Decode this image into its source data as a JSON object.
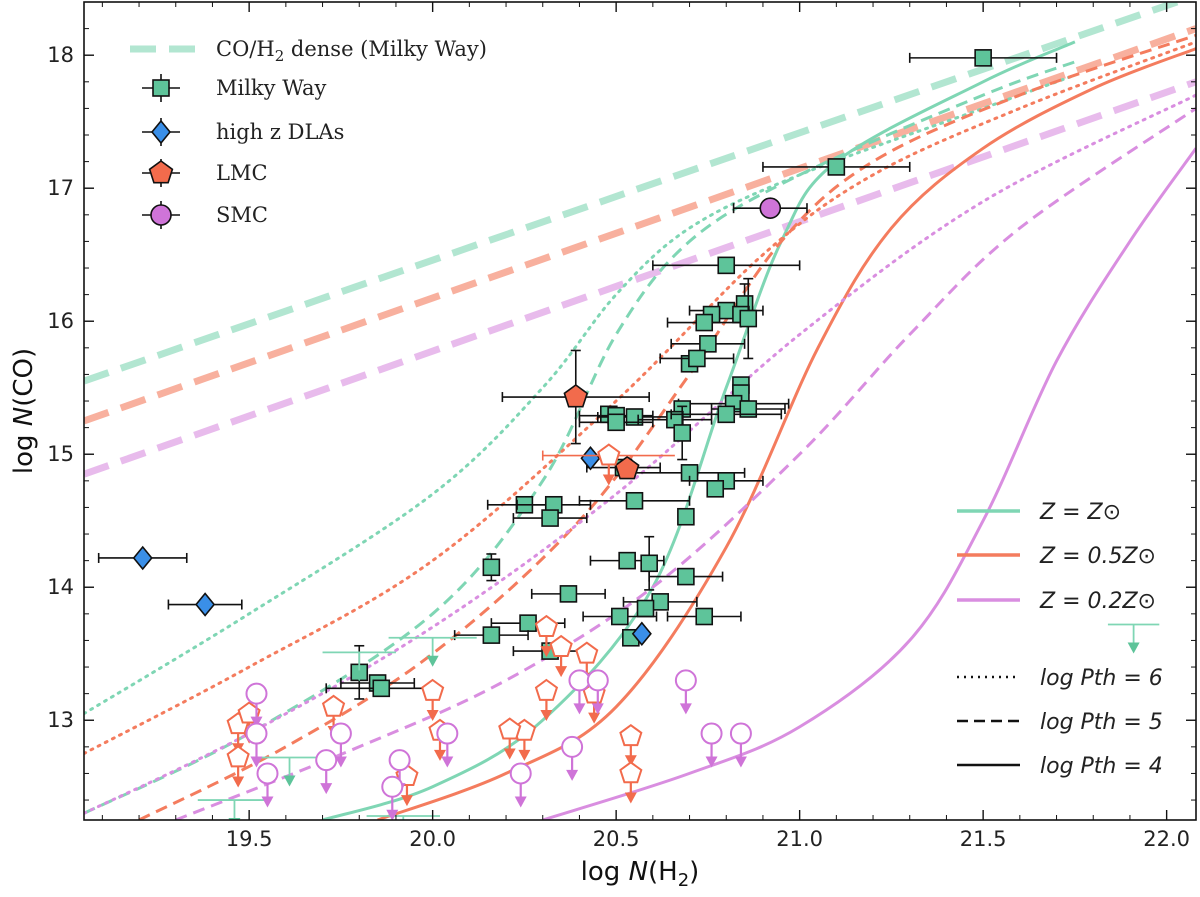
{
  "chart_data": {
    "type": "scatter",
    "xlabel": "log N(H2)",
    "ylabel": "log N(CO)",
    "xlim": [
      19.05,
      22.08
    ],
    "ylim": [
      12.25,
      18.4
    ],
    "xticks": [
      "19.5",
      "20.0",
      "20.5",
      "21.0",
      "21.5",
      "22.0"
    ],
    "yticks": [
      "13",
      "14",
      "15",
      "16",
      "17",
      "18"
    ],
    "legend_upper": {
      "dense": "CO/H2 dense (Milky Way)",
      "milky_way": "Milky Way",
      "dlas": "high z DLAs",
      "lmc": "LMC",
      "smc": "SMC"
    },
    "legend_metallicity": [
      "Z = Z⊙",
      "Z = 0.5Z⊙",
      "Z = 0.2Z⊙"
    ],
    "legend_pressure": [
      "log Pth = 6",
      "log Pth = 5",
      "log Pth = 4"
    ],
    "colors": {
      "solar": "#7fd6b4",
      "half": "#f47c5e",
      "fifth": "#d98ee0",
      "mw_marker": "#5ec49a",
      "dla_marker": "#3a8fe8",
      "lmc_marker": "#f26b4c",
      "smc_marker": "#cf74d8"
    },
    "dense_lines": [
      {
        "name": "CO/H2 dense Z=Zsun",
        "color": "solar",
        "x": [
          19.05,
          22.08
        ],
        "y": [
          15.55,
          18.45
        ]
      },
      {
        "name": "CO/H2 dense Z=0.5Zsun",
        "color": "half",
        "x": [
          19.05,
          22.08
        ],
        "y": [
          15.25,
          18.2
        ]
      },
      {
        "name": "CO/H2 dense Z=0.2Zsun",
        "color": "fifth",
        "x": [
          19.05,
          22.08
        ],
        "y": [
          14.85,
          17.8
        ]
      }
    ],
    "model_curves": [
      {
        "name": "Z=Zsun logPth=6",
        "color": "solar",
        "style": "dotted",
        "x": [
          19.05,
          19.5,
          20.0,
          20.3,
          20.5,
          20.7,
          21.0,
          21.5,
          21.75
        ],
        "y": [
          13.05,
          13.8,
          14.7,
          15.5,
          16.2,
          16.7,
          17.1,
          17.6,
          17.85
        ]
      },
      {
        "name": "Z=Zsun logPth=5",
        "color": "solar",
        "style": "dashed",
        "x": [
          19.05,
          19.5,
          20.0,
          20.3,
          20.5,
          20.7,
          21.0,
          21.5,
          21.75
        ],
        "y": [
          12.3,
          12.9,
          13.8,
          14.8,
          15.9,
          16.6,
          17.1,
          17.7,
          17.95
        ]
      },
      {
        "name": "Z=Zsun logPth=4",
        "color": "solar",
        "style": "solid",
        "x": [
          19.7,
          20.0,
          20.3,
          20.6,
          20.8,
          20.95,
          21.1,
          21.5,
          21.75
        ],
        "y": [
          12.25,
          12.5,
          13.0,
          14.0,
          15.5,
          16.6,
          17.2,
          17.8,
          18.1
        ]
      },
      {
        "name": "Z=0.5Zsun logPth=6",
        "color": "half",
        "style": "dotted",
        "x": [
          19.05,
          19.5,
          20.0,
          20.5,
          20.9,
          21.2,
          21.6,
          22.08
        ],
        "y": [
          12.75,
          13.4,
          14.2,
          15.4,
          16.5,
          17.1,
          17.6,
          18.1
        ]
      },
      {
        "name": "Z=0.5Zsun logPth=5",
        "color": "half",
        "style": "dashed",
        "x": [
          19.2,
          19.6,
          20.0,
          20.4,
          20.7,
          20.95,
          21.2,
          21.6,
          22.08
        ],
        "y": [
          12.25,
          12.8,
          13.5,
          14.5,
          15.6,
          16.6,
          17.2,
          17.7,
          18.15
        ]
      },
      {
        "name": "Z=0.5Zsun logPth=4",
        "color": "half",
        "style": "solid",
        "x": [
          19.85,
          20.2,
          20.5,
          20.8,
          21.05,
          21.25,
          21.5,
          21.8,
          22.08
        ],
        "y": [
          12.25,
          12.6,
          13.1,
          14.3,
          15.8,
          16.7,
          17.3,
          17.75,
          18.05
        ]
      },
      {
        "name": "Z=0.2Zsun logPth=6",
        "color": "fifth",
        "style": "dotted",
        "x": [
          19.05,
          19.5,
          20.0,
          20.5,
          21.0,
          21.5,
          22.08
        ],
        "y": [
          12.3,
          12.9,
          13.7,
          14.7,
          15.9,
          16.9,
          17.7
        ]
      },
      {
        "name": "Z=0.2Zsun logPth=5",
        "color": "fifth",
        "style": "dashed",
        "x": [
          19.3,
          19.8,
          20.2,
          20.6,
          21.0,
          21.3,
          21.6,
          22.08
        ],
        "y": [
          12.25,
          12.8,
          13.3,
          14.0,
          15.0,
          15.9,
          16.7,
          17.6
        ]
      },
      {
        "name": "Z=0.2Zsun logPth=4",
        "color": "fifth",
        "style": "solid",
        "x": [
          20.3,
          20.7,
          21.0,
          21.3,
          21.5,
          21.7,
          21.9,
          22.08
        ],
        "y": [
          12.25,
          12.6,
          12.95,
          13.6,
          14.5,
          15.7,
          16.6,
          17.3
        ]
      }
    ],
    "series": [
      {
        "name": "Milky Way",
        "marker": "square",
        "points": [
          {
            "x": 21.5,
            "y": 17.98,
            "xerr": 0.2
          },
          {
            "x": 21.1,
            "y": 17.16,
            "xerr": 0.2
          },
          {
            "x": 20.8,
            "y": 16.42,
            "xerr": 0.2
          },
          {
            "x": 20.85,
            "y": 16.13,
            "yerr": 0.15
          },
          {
            "x": 20.8,
            "y": 16.08,
            "xerr": 0.1
          },
          {
            "x": 20.84,
            "y": 16.05
          },
          {
            "x": 20.76,
            "y": 16.05
          },
          {
            "x": 20.74,
            "y": 15.99,
            "xerr": 0.1
          },
          {
            "x": 20.86,
            "y": 16.02,
            "yerr": 0.3
          },
          {
            "x": 20.75,
            "y": 15.83,
            "xerr": 0.1
          },
          {
            "x": 20.7,
            "y": 15.68
          },
          {
            "x": 20.72,
            "y": 15.72,
            "xerr": 0.1
          },
          {
            "x": 20.84,
            "y": 15.52
          },
          {
            "x": 20.84,
            "y": 15.46
          },
          {
            "x": 20.82,
            "y": 15.38,
            "xerr": 0.15
          },
          {
            "x": 20.86,
            "y": 15.34,
            "xerr": 0.1
          },
          {
            "x": 20.48,
            "y": 15.3
          },
          {
            "x": 20.5,
            "y": 15.29,
            "xerr": 0.1
          },
          {
            "x": 20.55,
            "y": 15.28,
            "xerr": 0.1
          },
          {
            "x": 20.68,
            "y": 15.34
          },
          {
            "x": 20.66,
            "y": 15.26,
            "xerr": 0.1
          },
          {
            "x": 20.5,
            "y": 15.24,
            "xerr": 0.1
          },
          {
            "x": 20.68,
            "y": 15.16,
            "yerr": 0.2
          },
          {
            "x": 20.8,
            "y": 15.3,
            "xerr": 0.15
          },
          {
            "x": 20.7,
            "y": 14.86,
            "xerr": 0.15
          },
          {
            "x": 20.8,
            "y": 14.8,
            "xerr": 0.1
          },
          {
            "x": 20.77,
            "y": 14.74
          },
          {
            "x": 20.52,
            "y": 14.9,
            "xerr": 0.1
          },
          {
            "x": 20.55,
            "y": 14.65,
            "xerr": 0.15
          },
          {
            "x": 20.25,
            "y": 14.62,
            "xerr": 0.1
          },
          {
            "x": 20.33,
            "y": 14.62,
            "xerr": 0.1
          },
          {
            "x": 20.32,
            "y": 14.52,
            "xerr": 0.1
          },
          {
            "x": 20.69,
            "y": 14.53
          },
          {
            "x": 20.16,
            "y": 14.15,
            "yerr": 0.1
          },
          {
            "x": 20.53,
            "y": 14.2,
            "xerr": 0.1
          },
          {
            "x": 20.59,
            "y": 14.18,
            "yerr": 0.2
          },
          {
            "x": 20.69,
            "y": 14.08,
            "xerr": 0.1
          },
          {
            "x": 20.37,
            "y": 13.95,
            "xerr": 0.1
          },
          {
            "x": 20.62,
            "y": 13.89,
            "xerr": 0.1
          },
          {
            "x": 20.58,
            "y": 13.84
          },
          {
            "x": 20.74,
            "y": 13.78,
            "xerr": 0.1
          },
          {
            "x": 20.51,
            "y": 13.78,
            "xerr": 0.1
          },
          {
            "x": 20.26,
            "y": 13.73,
            "xerr": 0.1
          },
          {
            "x": 20.16,
            "y": 13.64,
            "xerr": 0.1
          },
          {
            "x": 20.32,
            "y": 13.52,
            "xerr": 0.1
          },
          {
            "x": 20.54,
            "y": 13.62
          },
          {
            "x": 19.8,
            "y": 13.36,
            "yerr": 0.2
          },
          {
            "x": 19.85,
            "y": 13.28,
            "xerr": 0.1
          },
          {
            "x": 19.86,
            "y": 13.24,
            "xerr": 0.15
          }
        ]
      },
      {
        "name": "high z DLAs",
        "marker": "diamond",
        "points": [
          {
            "x": 19.21,
            "y": 14.22,
            "xerr": 0.12
          },
          {
            "x": 19.38,
            "y": 13.87,
            "xerr": 0.1
          },
          {
            "x": 20.43,
            "y": 14.97
          },
          {
            "x": 20.57,
            "y": 13.65
          }
        ]
      },
      {
        "name": "LMC",
        "marker": "pentagon",
        "points": [
          {
            "x": 20.39,
            "y": 15.43,
            "yerr": 0.35,
            "xerr": 0.2
          },
          {
            "x": 20.53,
            "y": 14.89
          }
        ]
      },
      {
        "name": "SMC",
        "marker": "circle",
        "points": [
          {
            "x": 20.92,
            "y": 16.85,
            "xerr": 0.1
          }
        ]
      },
      {
        "name": "Milky Way upper limits",
        "marker": "caret",
        "points": [
          {
            "x": 21.91,
            "y": 13.72,
            "xerr": 0.07
          },
          {
            "x": 20.0,
            "y": 13.62,
            "xerr": 0.12
          },
          {
            "x": 19.8,
            "y": 13.51,
            "xerr": 0.1
          },
          {
            "x": 19.61,
            "y": 12.72,
            "xerr": 0.08
          },
          {
            "x": 19.46,
            "y": 12.4,
            "xerr": 0.1
          },
          {
            "x": 19.92,
            "y": 12.28,
            "xerr": 0.1
          }
        ]
      },
      {
        "name": "LMC upper limits",
        "marker": "pentagon-open",
        "points": [
          {
            "x": 20.48,
            "y": 14.99,
            "xerr": 0.18
          },
          {
            "x": 20.31,
            "y": 13.7
          },
          {
            "x": 20.35,
            "y": 13.55
          },
          {
            "x": 20.42,
            "y": 13.5
          },
          {
            "x": 20.31,
            "y": 13.22
          },
          {
            "x": 20.44,
            "y": 13.2
          },
          {
            "x": 19.47,
            "y": 12.97
          },
          {
            "x": 19.5,
            "y": 13.05
          },
          {
            "x": 19.47,
            "y": 12.72
          },
          {
            "x": 19.73,
            "y": 13.1
          },
          {
            "x": 19.93,
            "y": 12.58
          },
          {
            "x": 20.0,
            "y": 13.22
          },
          {
            "x": 20.02,
            "y": 12.92
          },
          {
            "x": 20.25,
            "y": 12.92
          },
          {
            "x": 20.21,
            "y": 12.93
          },
          {
            "x": 20.54,
            "y": 12.88
          },
          {
            "x": 20.54,
            "y": 12.6
          }
        ]
      },
      {
        "name": "SMC upper limits",
        "marker": "circle-open",
        "points": [
          {
            "x": 19.52,
            "y": 13.2
          },
          {
            "x": 19.52,
            "y": 12.9
          },
          {
            "x": 19.55,
            "y": 12.6
          },
          {
            "x": 19.75,
            "y": 12.9
          },
          {
            "x": 19.71,
            "y": 12.7
          },
          {
            "x": 19.91,
            "y": 12.7
          },
          {
            "x": 19.89,
            "y": 12.5
          },
          {
            "x": 20.04,
            "y": 12.9
          },
          {
            "x": 20.24,
            "y": 12.6
          },
          {
            "x": 20.38,
            "y": 12.8
          },
          {
            "x": 20.4,
            "y": 13.3
          },
          {
            "x": 20.45,
            "y": 13.3
          },
          {
            "x": 20.69,
            "y": 13.3
          },
          {
            "x": 20.76,
            "y": 12.9
          },
          {
            "x": 20.84,
            "y": 12.9
          }
        ]
      }
    ]
  }
}
